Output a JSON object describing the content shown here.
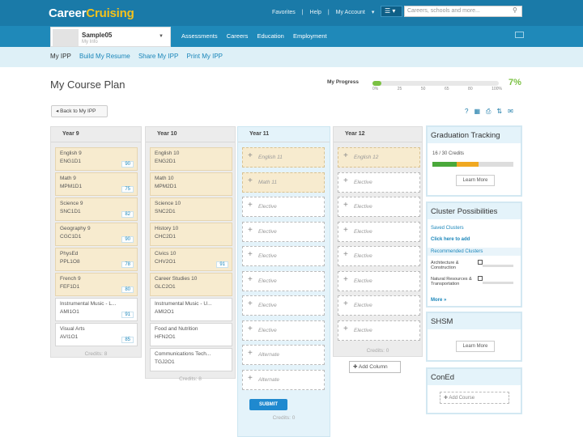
{
  "app": {
    "logo_part1": "Career",
    "logo_part2": "Cruising"
  },
  "top_links": {
    "favorites": "Favorites",
    "help": "Help",
    "my_account": "My Account"
  },
  "menu_icon": "list-icon",
  "search": {
    "placeholder": "Careers, schools and more..."
  },
  "user": {
    "name": "Sample05",
    "sub": "My Info"
  },
  "main_nav": [
    "Assessments",
    "Careers",
    "Education",
    "Employment"
  ],
  "tabs": [
    "My IPP",
    "Build My Resume",
    "Share My IPP",
    "Print My IPP"
  ],
  "page": {
    "title": "My Course Plan",
    "back_label": "Back to My IPP"
  },
  "progress": {
    "label": "My Progress",
    "value_fraction": 0.07,
    "percent_text": "7%",
    "ticks": [
      "0%",
      "25",
      "50",
      "65",
      "80",
      "100%"
    ]
  },
  "columns": [
    {
      "title": "Year 9",
      "credits": "Credits: 8",
      "courses": [
        {
          "name": "English 9",
          "code": "ENG1D1",
          "pct": "90"
        },
        {
          "name": "Math 9",
          "code": "MPM1D1",
          "pct": "75"
        },
        {
          "name": "Science 9",
          "code": "SNC1D1",
          "pct": "82"
        },
        {
          "name": "Geography 9",
          "code": "CGC1D1",
          "pct": "90"
        },
        {
          "name": "PhysEd",
          "code": "PPL1O8",
          "pct": "78"
        },
        {
          "name": "French 9",
          "code": "FEF1D1",
          "pct": "80"
        },
        {
          "name": "Instrumental Music - L...",
          "code": "AMI1O1",
          "pct": "91",
          "white": true
        },
        {
          "name": "Visual Arts",
          "code": "AVI1O1",
          "pct": "85",
          "white": true
        }
      ]
    },
    {
      "title": "Year 10",
      "credits": "Credits: 8",
      "courses": [
        {
          "name": "English 10",
          "code": "ENG2D1"
        },
        {
          "name": "Math 10",
          "code": "MPM2D1"
        },
        {
          "name": "Science 10",
          "code": "SNC2D1"
        },
        {
          "name": "History 10",
          "code": "CHC2D1"
        },
        {
          "name": "Civics 10",
          "code": "CHV2O1",
          "pct": "91"
        },
        {
          "name": "Career Studies 10",
          "code": "GLC2O1"
        },
        {
          "name": "Instrumental Music - U...",
          "code": "AMI2O1",
          "white": true
        },
        {
          "name": "Food and Nutrition",
          "code": "HFN2O1",
          "white": true
        },
        {
          "name": "Communications Tech...",
          "code": "TGJ2O1",
          "white": true
        }
      ]
    },
    {
      "title": "Year 11",
      "credits": "Credits: 0",
      "submit": "SUBMIT",
      "slots": [
        {
          "label": "English 11",
          "filled": true
        },
        {
          "label": "Math 11",
          "filled": true
        },
        {
          "label": "Elective"
        },
        {
          "label": "Elective"
        },
        {
          "label": "Elective"
        },
        {
          "label": "Elective"
        },
        {
          "label": "Elective"
        },
        {
          "label": "Elective"
        },
        {
          "label": "Alternate"
        },
        {
          "label": "Alternate"
        }
      ]
    },
    {
      "title": "Year 12",
      "credits": "Credits: 0",
      "slots": [
        {
          "label": "English 12",
          "filled": true
        },
        {
          "label": "Elective"
        },
        {
          "label": "Elective"
        },
        {
          "label": "Elective"
        },
        {
          "label": "Elective"
        },
        {
          "label": "Elective"
        },
        {
          "label": "Elective"
        },
        {
          "label": "Elective"
        }
      ]
    }
  ],
  "add_column": "Add Column",
  "panels": {
    "graduation": {
      "title": "Graduation Tracking",
      "credits": "16 / 30 Credits",
      "green_fraction": 0.3,
      "orange_fraction": 0.27,
      "learn_more": "Learn More"
    },
    "clusters": {
      "title": "Cluster Possibilities",
      "saved": "Saved Clusters",
      "add_link": "Click here to add",
      "recommended": "Recommended Clusters",
      "items": [
        {
          "name": "Architecture & Construction",
          "value": "2"
        },
        {
          "name": "Natural Resources & Transportation",
          "value": "2"
        }
      ],
      "more": "More »"
    },
    "shsm": {
      "title": "SHSM",
      "learn_more": "Learn More"
    },
    "coned": {
      "title": "ConEd",
      "add": "Add Course"
    }
  },
  "colors": {
    "header": "#1a7aa8",
    "accent": "#f5c21b",
    "progress_green": "#7bc143",
    "course_card": "#f7ebcf"
  }
}
